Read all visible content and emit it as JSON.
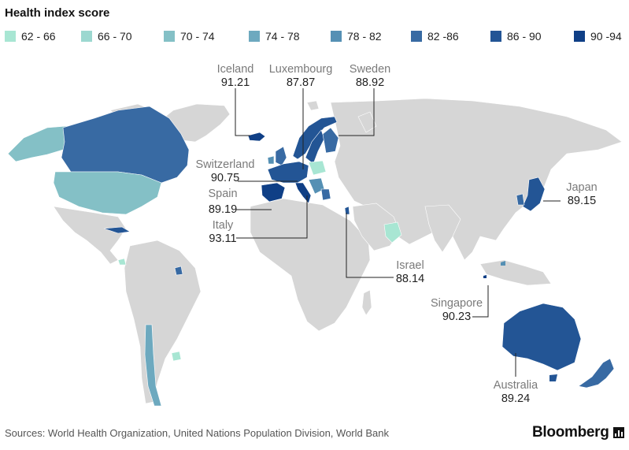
{
  "title": "Health index score",
  "legend": [
    {
      "label": "62 - 66",
      "color": "#a8e6d3"
    },
    {
      "label": "66 - 70",
      "color": "#9cd8d0"
    },
    {
      "label": "70 - 74",
      "color": "#84c0c6"
    },
    {
      "label": "74 - 78",
      "color": "#6da9bf"
    },
    {
      "label": "78 - 82",
      "color": "#5590b4"
    },
    {
      "label": "82 -86",
      "color": "#386aa3"
    },
    {
      "label": "86 - 90",
      "color": "#235595"
    },
    {
      "label": "90 -94",
      "color": "#0f3f86"
    }
  ],
  "callouts": [
    {
      "id": "iceland",
      "name": "Iceland",
      "value": "91.21"
    },
    {
      "id": "luxembourg",
      "name": "Luxembourg",
      "value": "87.87"
    },
    {
      "id": "sweden",
      "name": "Sweden",
      "value": "88.92"
    },
    {
      "id": "switzerland",
      "name": "Switzerland",
      "value": "90.75"
    },
    {
      "id": "spain",
      "name": "Spain",
      "value": "89.19"
    },
    {
      "id": "italy",
      "name": "Italy",
      "value": "93.11"
    },
    {
      "id": "japan",
      "name": "Japan",
      "value": "89.15"
    },
    {
      "id": "israel",
      "name": "Israel",
      "value": "88.14"
    },
    {
      "id": "singapore",
      "name": "Singapore",
      "value": "90.23"
    },
    {
      "id": "australia",
      "name": "Australia",
      "value": "89.24"
    }
  ],
  "source": "Sources: World Health Organization, United Nations Population Division, World Bank",
  "brand": "Bloomberg"
}
